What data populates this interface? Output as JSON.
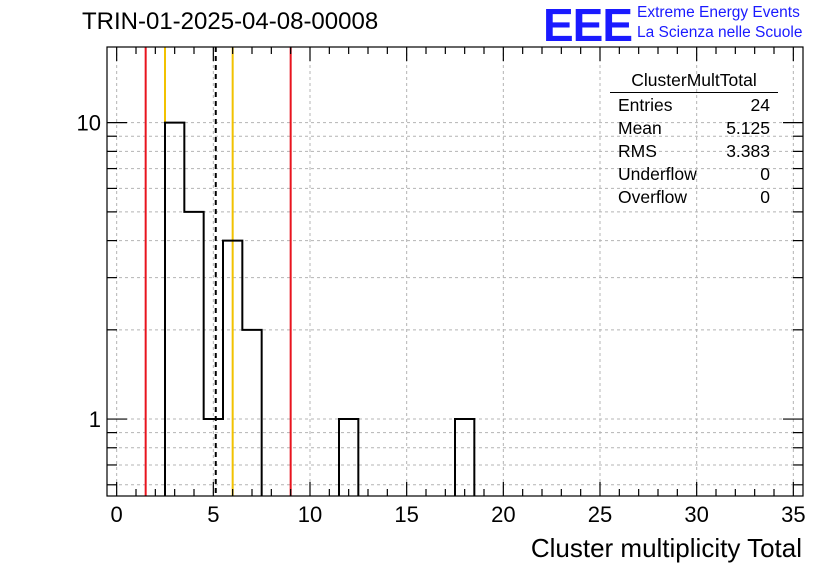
{
  "chart_data": {
    "type": "histogram",
    "title": "TRIN-01-2025-04-08-00008",
    "xlabel": "Cluster multiplicity Total",
    "ylabel": "",
    "xlim": [
      -0.5,
      35.5
    ],
    "ylim": [
      0.55,
      18
    ],
    "yscale": "log",
    "grid": true,
    "x_ticks": [
      0,
      5,
      10,
      15,
      20,
      25,
      30,
      35
    ],
    "y_ticks": [
      1,
      10
    ],
    "bin_edges": [
      -0.5,
      0.5,
      1.5,
      2.5,
      3.5,
      4.5,
      5.5,
      6.5,
      7.5,
      8.5,
      9.5,
      10.5,
      11.5,
      12.5,
      13.5,
      14.5,
      15.5,
      16.5,
      17.5,
      18.5,
      19.5,
      20.5,
      21.5,
      22.5,
      23.5,
      24.5,
      25.5,
      26.5,
      27.5,
      28.5,
      29.5,
      30.5,
      31.5,
      32.5,
      33.5,
      34.5,
      35.5
    ],
    "counts": [
      0,
      0,
      0,
      10,
      5,
      1,
      4,
      2,
      0,
      0,
      0,
      0,
      1,
      0,
      0,
      0,
      0,
      0,
      1,
      0,
      0,
      0,
      0,
      0,
      0,
      0,
      0,
      0,
      0,
      0,
      0,
      0,
      0,
      0,
      0,
      0
    ],
    "vertical_lines": [
      {
        "x": 1.5,
        "color": "#e8141e",
        "style": "solid"
      },
      {
        "x": 2.5,
        "color": "#f2c200",
        "style": "solid"
      },
      {
        "x": 5.125,
        "color": "#000000",
        "style": "dashed"
      },
      {
        "x": 6.0,
        "color": "#f2c200",
        "style": "solid"
      },
      {
        "x": 9.0,
        "color": "#e8141e",
        "style": "solid"
      }
    ],
    "stats_box": {
      "name": "ClusterMultTotal",
      "rows": [
        {
          "label": "Entries",
          "value": "24"
        },
        {
          "label": "Mean",
          "value": "5.125"
        },
        {
          "label": "RMS",
          "value": "3.383"
        },
        {
          "label": "Underflow",
          "value": "0"
        },
        {
          "label": "Overflow",
          "value": "0"
        }
      ]
    },
    "logo": {
      "mark": "EEE",
      "line1": "Extreme Energy Events",
      "line2": "La Scienza nelle Scuole",
      "color": "#1a1aff"
    }
  }
}
